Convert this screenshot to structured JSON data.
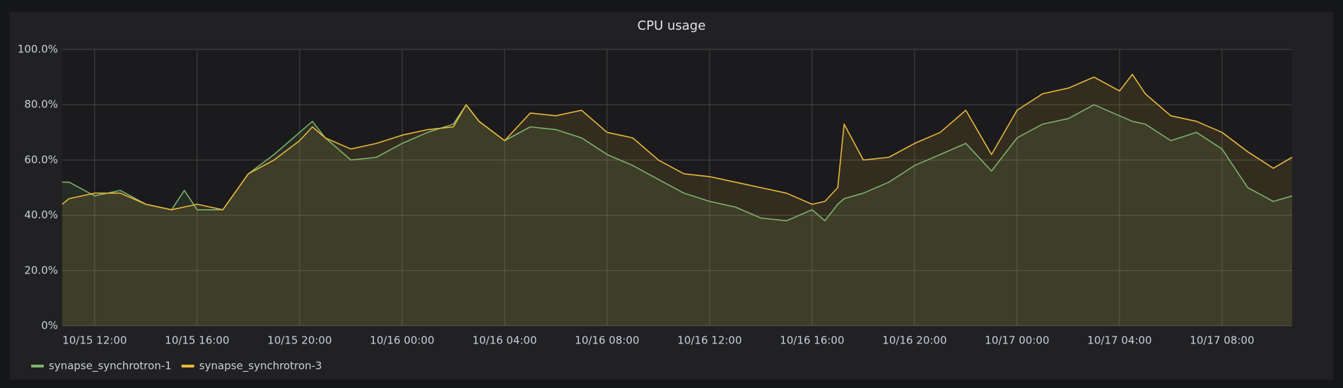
{
  "chart_data": {
    "type": "line",
    "title": "CPU usage",
    "x": [
      "10/15 10:44",
      "10/15 11:00",
      "10/15 12:00",
      "10/15 13:00",
      "10/15 14:00",
      "10/15 15:00",
      "10/15 15:30",
      "10/15 16:00",
      "10/15 17:00",
      "10/15 18:00",
      "10/15 19:00",
      "10/15 20:00",
      "10/15 20:30",
      "10/15 21:00",
      "10/15 22:00",
      "10/15 23:00",
      "10/16 00:00",
      "10/16 01:00",
      "10/16 02:00",
      "10/16 02:30",
      "10/16 03:00",
      "10/16 04:00",
      "10/16 05:00",
      "10/16 06:00",
      "10/16 07:00",
      "10/16 08:00",
      "10/16 09:00",
      "10/16 10:00",
      "10/16 11:00",
      "10/16 12:00",
      "10/16 13:00",
      "10/16 14:00",
      "10/16 15:00",
      "10/16 16:00",
      "10/16 16:30",
      "10/16 17:00",
      "10/16 17:15",
      "10/16 18:00",
      "10/16 19:00",
      "10/16 20:00",
      "10/16 21:00",
      "10/16 22:00",
      "10/16 23:00",
      "10/17 00:00",
      "10/17 01:00",
      "10/17 02:00",
      "10/17 03:00",
      "10/17 04:00",
      "10/17 04:30",
      "10/17 05:00",
      "10/17 06:00",
      "10/17 07:00",
      "10/17 08:00",
      "10/17 09:00",
      "10/17 10:00",
      "10/17 10:44"
    ],
    "series": [
      {
        "name": "synapse_synchrotron-1",
        "color": "#7eb26d",
        "values": [
          52,
          52,
          47,
          49,
          44,
          42,
          49,
          42,
          42,
          55,
          62,
          70,
          74,
          68,
          60,
          61,
          66,
          70,
          73,
          80,
          74,
          67,
          72,
          71,
          68,
          62,
          58,
          53,
          48,
          45,
          43,
          39,
          38,
          42,
          38,
          44,
          46,
          48,
          52,
          58,
          62,
          66,
          56,
          68,
          73,
          75,
          80,
          76,
          74,
          73,
          67,
          70,
          64,
          50,
          45,
          47
        ]
      },
      {
        "name": "synapse_synchrotron-3",
        "color": "#eab839",
        "values": [
          44,
          46,
          48,
          48,
          44,
          42,
          43,
          44,
          42,
          55,
          60,
          67,
          72,
          68,
          64,
          66,
          69,
          71,
          72,
          80,
          74,
          67,
          77,
          76,
          78,
          70,
          68,
          60,
          55,
          54,
          52,
          50,
          48,
          44,
          45,
          50,
          73,
          60,
          61,
          66,
          70,
          78,
          62,
          78,
          84,
          86,
          90,
          85,
          91,
          84,
          76,
          74,
          70,
          63,
          57,
          61
        ]
      }
    ],
    "xlim": [
      "10/15 10:44",
      "10/17 10:44"
    ],
    "xticks": [
      "10/15 12:00",
      "10/15 16:00",
      "10/15 20:00",
      "10/16 00:00",
      "10/16 04:00",
      "10/16 08:00",
      "10/16 12:00",
      "10/16 16:00",
      "10/16 20:00",
      "10/17 00:00",
      "10/17 04:00",
      "10/17 08:00"
    ],
    "ylim": [
      0,
      100
    ],
    "yticks": [
      {
        "value": 0,
        "label": "0%"
      },
      {
        "value": 20,
        "label": "20.0%"
      },
      {
        "value": 40,
        "label": "40.0%"
      },
      {
        "value": 60,
        "label": "60.0%"
      },
      {
        "value": 80,
        "label": "80.0%"
      },
      {
        "value": 100,
        "label": "100.0%"
      }
    ],
    "grid": true,
    "legend": "bottom-left"
  }
}
